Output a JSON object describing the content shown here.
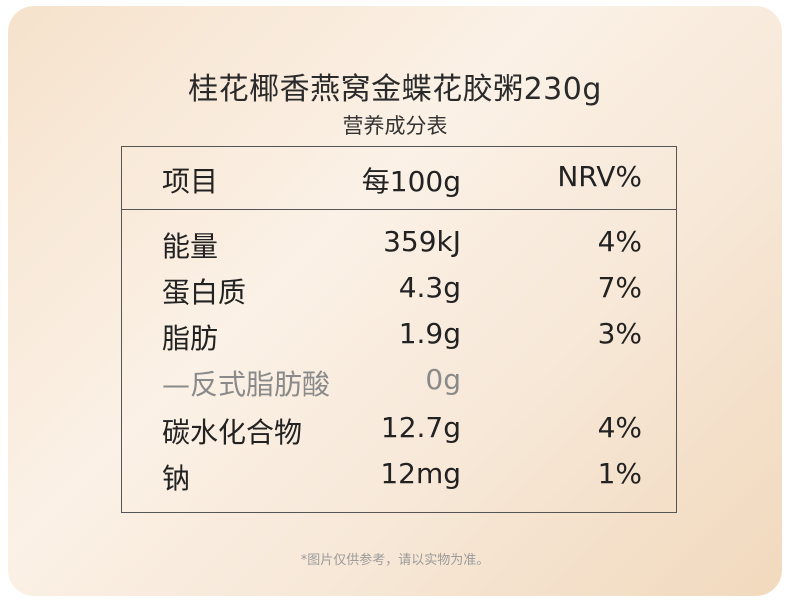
{
  "title": "桂花椰香燕窝金蝶花胶粥230g",
  "subtitle": "营养成分表",
  "table": {
    "headers": [
      "项目",
      "每100g",
      "NRV%"
    ],
    "rows": [
      {
        "name": "能量",
        "value": "359kJ",
        "nrv": "4%"
      },
      {
        "name": "蛋白质",
        "value": "4.3g",
        "nrv": "7%"
      },
      {
        "name": "脂肪",
        "value": "1.9g",
        "nrv": "3%"
      },
      {
        "name": "—反式脂肪酸",
        "value": "0g",
        "nrv": ""
      },
      {
        "name": "碳水化合物",
        "value": "12.7g",
        "nrv": "4%"
      },
      {
        "name": "钠",
        "value": "12mg",
        "nrv": "1%"
      }
    ]
  },
  "footer": "*图片仅供参考，请以实物为准。"
}
